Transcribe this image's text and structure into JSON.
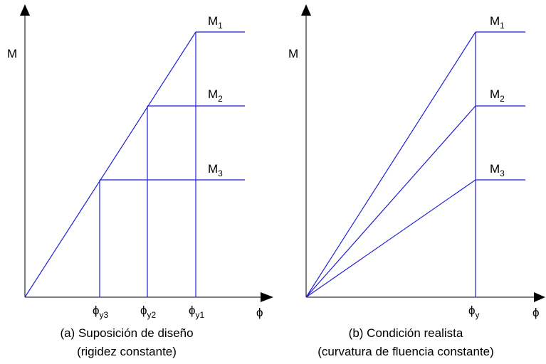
{
  "diagram_a": {
    "y_axis_label": "M",
    "x_axis_label": "ϕ",
    "moments": [
      {
        "base": "M",
        "sub": "1"
      },
      {
        "base": "M",
        "sub": "2"
      },
      {
        "base": "M",
        "sub": "3"
      }
    ],
    "curvatures": [
      {
        "base": "ϕ",
        "sub": "y3"
      },
      {
        "base": "ϕ",
        "sub": "y2"
      },
      {
        "base": "ϕ",
        "sub": "y1"
      }
    ],
    "caption_line1": "(a) Suposición de diseño",
    "caption_line2": "(rigidez constante)"
  },
  "diagram_b": {
    "y_axis_label": "M",
    "x_axis_label": "ϕ",
    "moments": [
      {
        "base": "M",
        "sub": "1"
      },
      {
        "base": "M",
        "sub": "2"
      },
      {
        "base": "M",
        "sub": "3"
      }
    ],
    "curvature": {
      "base": "ϕ",
      "sub": "y"
    },
    "caption_line1": "(b) Condición realista",
    "caption_line2": "(curvatura de fluencia constante)"
  },
  "colors": {
    "axes": "#000000",
    "lines": "#1f1fd6",
    "background": "#ffffff"
  }
}
